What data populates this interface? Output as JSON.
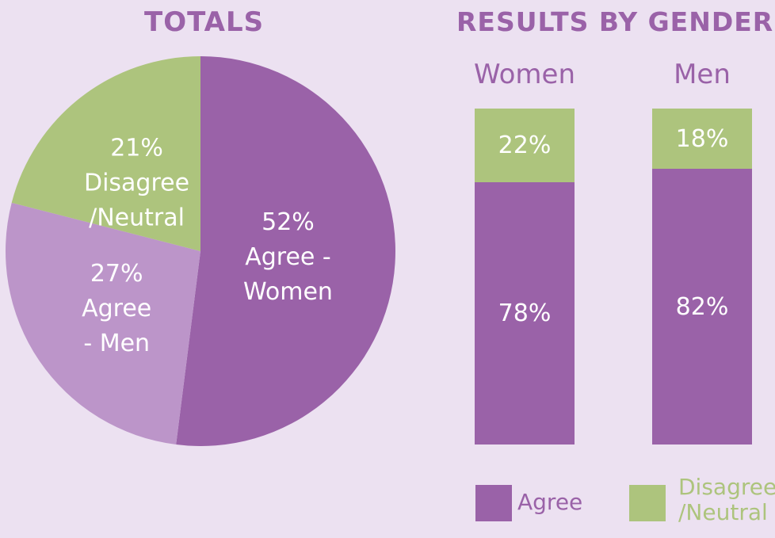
{
  "colors": {
    "agree": "#9a62a8",
    "agree_men": "#bc95c9",
    "disagree": "#adc47d",
    "background": "#ece1f1",
    "text_light": "#ffffff"
  },
  "chart_data": [
    {
      "type": "pie",
      "title": "TOTALS",
      "slices": [
        {
          "label": "52%",
          "label_lines": [
            "52%",
            "Agree -",
            "Women"
          ],
          "value": 52,
          "color": "#9a62a8"
        },
        {
          "label": "27%",
          "label_lines": [
            "27%",
            "Agree",
            "- Men"
          ],
          "value": 27,
          "color": "#bc95c9"
        },
        {
          "label": "21%",
          "label_lines": [
            "21%",
            "Disagree",
            "/Neutral"
          ],
          "value": 21,
          "color": "#adc47d"
        }
      ]
    },
    {
      "type": "bar",
      "stacked": true,
      "title": "RESULTS BY GENDER",
      "categories": [
        "Women",
        "Men"
      ],
      "series": [
        {
          "name": "Agree",
          "values": [
            78,
            82
          ],
          "color": "#9a62a8"
        },
        {
          "name": "Disagree /Neutral",
          "values": [
            22,
            18
          ],
          "color": "#adc47d"
        }
      ],
      "ylim": [
        0,
        100
      ],
      "legend": {
        "placement": "bottom",
        "items": [
          {
            "label": "Agree",
            "color": "#9a62a8"
          },
          {
            "label_lines": [
              "Disagree",
              "/Neutral"
            ],
            "color": "#adc47d"
          }
        ]
      }
    }
  ]
}
